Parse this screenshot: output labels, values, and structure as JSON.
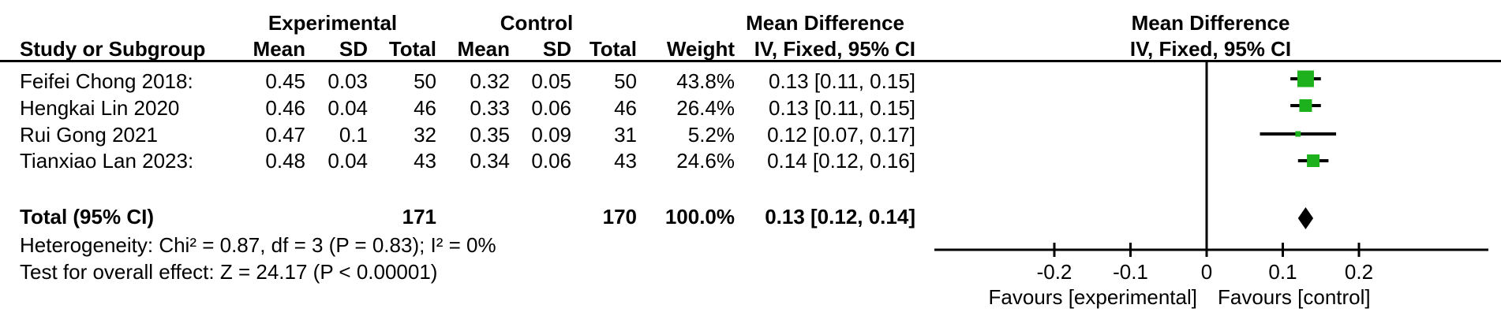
{
  "table": {
    "group_experimental": "Experimental",
    "group_control": "Control",
    "group_md_line1": "Mean Difference",
    "group_md_line2": "IV, Fixed, 95% CI",
    "header": [
      "Study or Subgroup",
      "Mean",
      "SD",
      "Total",
      "Mean",
      "SD",
      "Total",
      "Weight",
      "IV, Fixed, 95% CI"
    ],
    "rows": [
      [
        "Feifei Chong 2018:",
        "0.45",
        "0.03",
        "50",
        "0.32",
        "0.05",
        "50",
        "43.8%",
        "0.13 [0.11, 0.15]"
      ],
      [
        "Hengkai Lin 2020",
        "0.46",
        "0.04",
        "46",
        "0.33",
        "0.06",
        "46",
        "26.4%",
        "0.13 [0.11, 0.15]"
      ],
      [
        "Rui Gong 2021",
        "0.47",
        "0.1",
        "32",
        "0.35",
        "0.09",
        "31",
        "5.2%",
        "0.12 [0.07, 0.17]"
      ],
      [
        "Tianxiao Lan 2023:",
        "0.48",
        "0.04",
        "43",
        "0.34",
        "0.06",
        "43",
        "24.6%",
        "0.14 [0.12, 0.16]"
      ]
    ],
    "total_row": [
      "Total (95% CI)",
      "",
      "",
      "171",
      "",
      "",
      "170",
      "100.0%",
      "0.13 [0.12, 0.14]"
    ],
    "heterogeneity": "Heterogeneity: Chi² = 0.87, df = 3 (P = 0.83); I² = 0%",
    "overall_effect": "Test for overall effect: Z = 24.17 (P < 0.00001)"
  },
  "plot": {
    "header1": "Mean Difference",
    "header2": "IV, Fixed, 95% CI"
  },
  "colors": {
    "marker_green": "#1db21d",
    "diamond_black": "#000000",
    "line_black": "#000000"
  },
  "chart_data": {
    "type": "forest",
    "effect_measure": "Mean Difference",
    "model": "IV, Fixed, 95% CI",
    "studies": [
      {
        "name": "Feifei Chong 2018:",
        "est": 0.13,
        "lo": 0.11,
        "hi": 0.15,
        "weight_pct": 43.8
      },
      {
        "name": "Hengkai Lin 2020",
        "est": 0.13,
        "lo": 0.11,
        "hi": 0.15,
        "weight_pct": 26.4
      },
      {
        "name": "Rui Gong 2021",
        "est": 0.12,
        "lo": 0.07,
        "hi": 0.17,
        "weight_pct": 5.2
      },
      {
        "name": "Tianxiao Lan 2023:",
        "est": 0.14,
        "lo": 0.12,
        "hi": 0.16,
        "weight_pct": 24.6
      }
    ],
    "total": {
      "label": "Total (95% CI)",
      "est": 0.13,
      "lo": 0.12,
      "hi": 0.14
    },
    "heterogeneity": {
      "chi2": 0.87,
      "df": 3,
      "p": 0.83,
      "i2_pct": 0
    },
    "overall_effect": {
      "z": 24.17,
      "p": "< 0.00001"
    },
    "axis": {
      "ticks": [
        -0.2,
        -0.1,
        0,
        0.1,
        0.2
      ],
      "tick_labels": [
        "-0.2",
        "-0.1",
        "0",
        "0.1",
        "0.2"
      ],
      "xmin": -0.36,
      "xmax": 0.37,
      "favours_left": "Favours [experimental]",
      "favours_right": "Favours [control]"
    }
  }
}
